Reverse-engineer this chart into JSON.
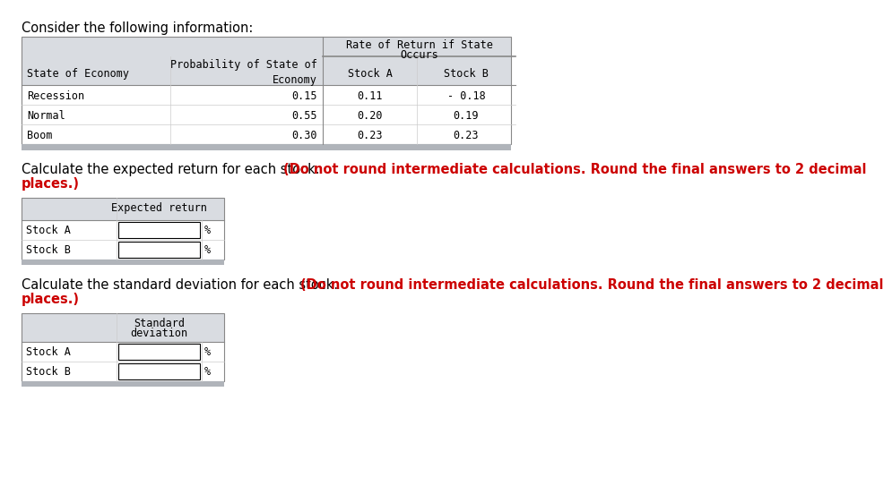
{
  "title": "Consider the following information:",
  "table1_rows": [
    [
      "Recession",
      "0.15",
      "0.11",
      "- 0.18"
    ],
    [
      "Normal",
      "0.55",
      "0.20",
      "0.19"
    ],
    [
      "Boom",
      "0.30",
      "0.23",
      "0.23"
    ]
  ],
  "text1_normal": "Calculate the expected return for each stock. ",
  "text1_red": "(Do not round intermediate calculations. Round the final answers to 2 decimal",
  "text1_red2": "places.)",
  "table2_header": "Expected return",
  "table2_rows": [
    "Stock A",
    "Stock B"
  ],
  "text2_normal": "Calculate the standard deviation for each stock. ",
  "text2_red": "(Do not round intermediate calculations. Round the final answers to 2 decimal",
  "text2_red2": "places.)",
  "table3_header_line1": "Standard",
  "table3_header_line2": "deviation",
  "table3_rows": [
    "Stock A",
    "Stock B"
  ],
  "bg_color": "#ffffff",
  "hdr_bg": "#d9dce1",
  "border_dark": "#888888",
  "border_light": "#cccccc",
  "bar_color": "#b0b4ba",
  "black": "#000000",
  "red": "#cc0000",
  "mono": "DejaVu Sans Mono",
  "sans": "DejaVu Sans"
}
